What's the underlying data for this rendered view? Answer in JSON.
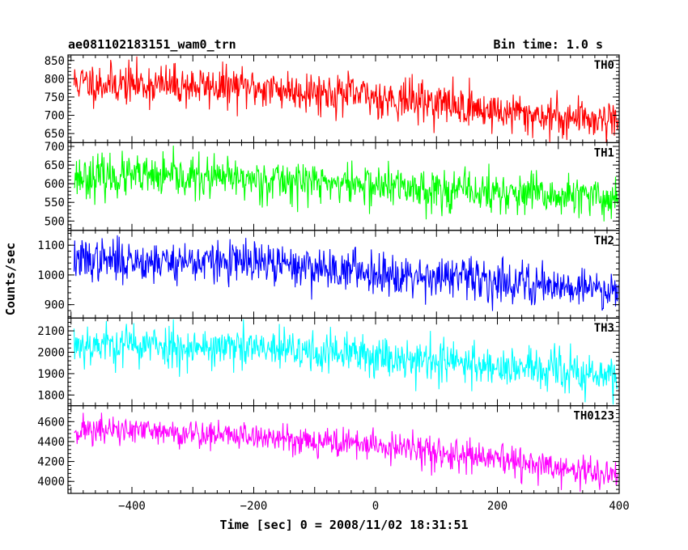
{
  "header": {
    "obs_name": "ae081102183151_wam0_trn",
    "bin_time": "Bin time: 1.0 s"
  },
  "axis": {
    "xlabel": "Time [sec] 0 = 2008/11/02 18:31:51",
    "ylabel": "Counts/sec"
  },
  "chart_data": {
    "type": "line",
    "x_range": [
      -505,
      400
    ],
    "x_ticks": [
      -400,
      -200,
      0,
      200,
      400
    ],
    "x_tick_labels": [
      "−400",
      "−200",
      "0",
      "200",
      "400"
    ],
    "bin_seconds": 1.0,
    "sampled_x": [
      -500,
      -400,
      -300,
      -200,
      -100,
      0,
      100,
      200,
      300,
      400
    ],
    "series": [
      {
        "name": "TH0",
        "color": "#ff0000",
        "ylim": [
          625,
          865
        ],
        "y_ticks": [
          650,
          700,
          750,
          800,
          850
        ],
        "y_tick_labels": [
          "650",
          "700",
          "750",
          "800",
          "850"
        ],
        "values": [
          790,
          785,
          780,
          775,
          765,
          750,
          735,
          710,
          695,
          690
        ],
        "noise": 28,
        "seed": 11
      },
      {
        "name": "TH1",
        "color": "#00ff00",
        "ylim": [
          475,
          710
        ],
        "y_ticks": [
          500,
          550,
          600,
          650,
          700
        ],
        "y_tick_labels": [
          "500",
          "550",
          "600",
          "650",
          "700"
        ],
        "values": [
          620,
          618,
          615,
          612,
          605,
          595,
          585,
          575,
          565,
          560
        ],
        "noise": 28,
        "seed": 23
      },
      {
        "name": "TH2",
        "color": "#0000ff",
        "ylim": [
          855,
          1150
        ],
        "y_ticks": [
          900,
          1000,
          1100
        ],
        "y_tick_labels": [
          "900",
          "1000",
          "1100"
        ],
        "values": [
          1050,
          1048,
          1045,
          1040,
          1025,
          1010,
          995,
          980,
          965,
          950
        ],
        "noise": 35,
        "seed": 37
      },
      {
        "name": "TH3",
        "color": "#00ffff",
        "ylim": [
          1750,
          2160
        ],
        "y_ticks": [
          1800,
          1900,
          2000,
          2100
        ],
        "y_tick_labels": [
          "1800",
          "1900",
          "2000",
          "2100"
        ],
        "values": [
          2040,
          2035,
          2025,
          2015,
          2000,
          1985,
          1960,
          1935,
          1910,
          1880
        ],
        "noise": 50,
        "seed": 53
      },
      {
        "name": "TH0123",
        "color": "#ff00ff",
        "ylim": [
          3880,
          4760
        ],
        "y_ticks": [
          4000,
          4200,
          4400,
          4600
        ],
        "y_tick_labels": [
          "4000",
          "4200",
          "4400",
          "4600"
        ],
        "values": [
          4520,
          4505,
          4480,
          4450,
          4410,
          4360,
          4290,
          4210,
          4130,
          4050
        ],
        "noise": 75,
        "seed": 71
      }
    ]
  }
}
